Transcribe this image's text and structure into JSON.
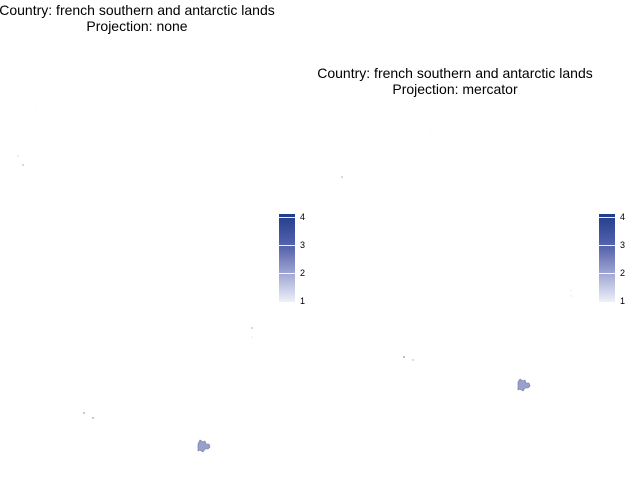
{
  "panels": [
    {
      "title_line1": "Country: french southern and antarctic lands",
      "title_line2": "Projection: none",
      "legend": {
        "ticks": [
          "4",
          "3",
          "2",
          "1"
        ]
      }
    },
    {
      "title_line1": "Country: french southern and antarctic lands",
      "title_line2": "Projection: mercator",
      "legend": {
        "ticks": [
          "4",
          "3",
          "2",
          "1"
        ]
      }
    }
  ],
  "colors": {
    "land_fill": "#9aa0cc",
    "land_stroke": "#6f76a8",
    "legend_high": "#1f3c8c",
    "legend_low": "#eef0fa"
  },
  "legend_range": [
    1,
    4
  ]
}
